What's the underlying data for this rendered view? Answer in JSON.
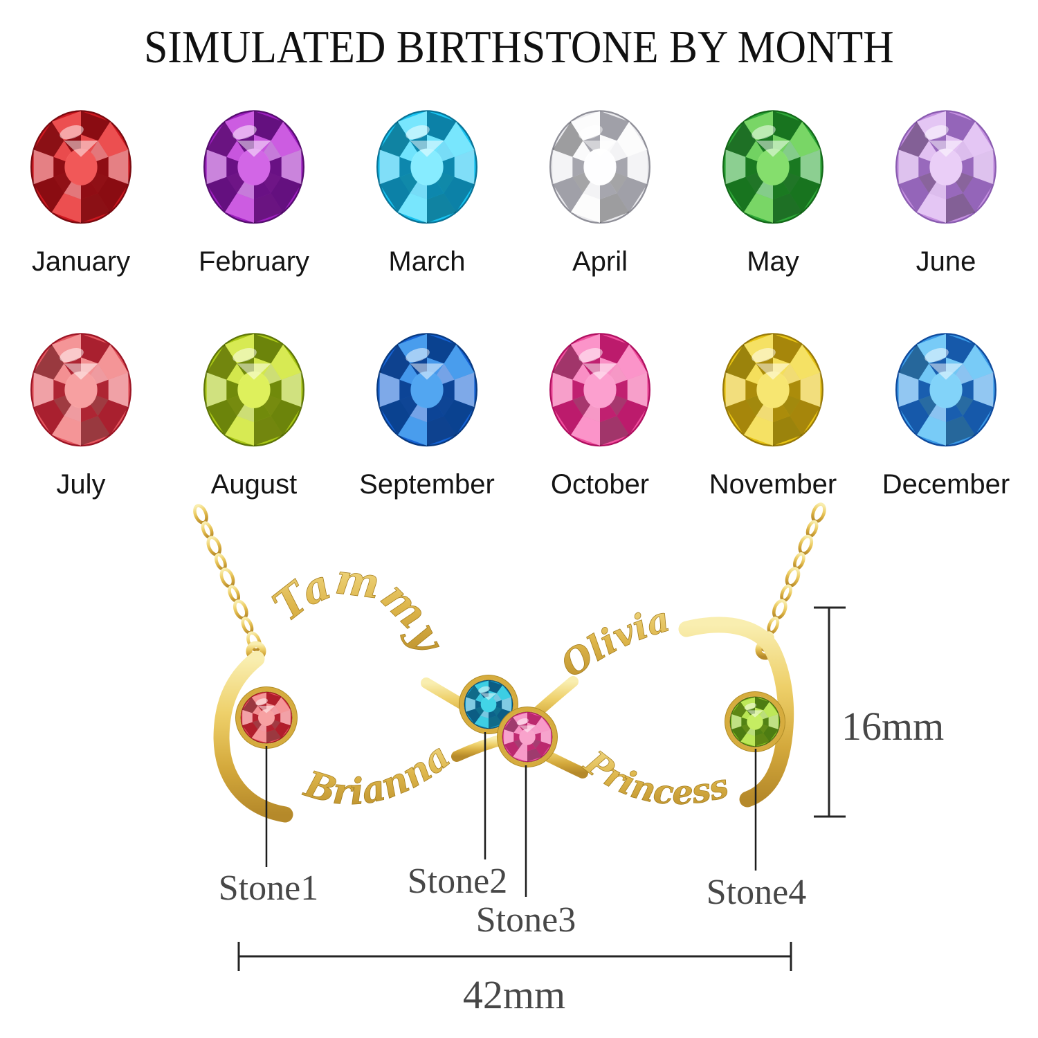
{
  "title": "SIMULATED BIRTHSTONE BY MONTH",
  "birthstones": [
    {
      "month": "January",
      "base": "#cf1820",
      "dark": "#7a0a10",
      "light": "#f25c5c"
    },
    {
      "month": "February",
      "base": "#9e1fc0",
      "dark": "#570e70",
      "light": "#d56ae8"
    },
    {
      "month": "March",
      "base": "#18c4f2",
      "dark": "#0a7396",
      "light": "#8deeff"
    },
    {
      "month": "April",
      "base": "#ebebee",
      "dark": "#8f8f98",
      "light": "#ffffff"
    },
    {
      "month": "May",
      "base": "#2ea838",
      "dark": "#14691a",
      "light": "#8ae070"
    },
    {
      "month": "June",
      "base": "#c490e0",
      "dark": "#8a5cb0",
      "light": "#ecd2f8"
    },
    {
      "month": "July",
      "base": "#e4555e",
      "dark": "#9c1525",
      "light": "#f8a4a4"
    },
    {
      "month": "August",
      "base": "#aac816",
      "dark": "#5e7508",
      "light": "#e0f260"
    },
    {
      "month": "September",
      "base": "#1563d6",
      "dark": "#093a80",
      "light": "#55aaf2"
    },
    {
      "month": "October",
      "base": "#f0509e",
      "dark": "#b01060",
      "light": "#fca4d2"
    },
    {
      "month": "November",
      "base": "#e8c413",
      "dark": "#97790a",
      "light": "#f8e876"
    },
    {
      "month": "December",
      "base": "#3a9ae8",
      "dark": "#0f4a9c",
      "light": "#86d6fa"
    }
  ],
  "necklace": {
    "names": [
      "Tammy",
      "Olivia",
      "Brianna",
      "Princess"
    ],
    "gold": {
      "base": "#e7c95f",
      "light": "#f9eeb0",
      "dark": "#b5892a"
    },
    "stones": [
      {
        "label": "Stone1",
        "base": "#e8545f",
        "dark": "#a31220",
        "light": "#f8a5a5"
      },
      {
        "label": "Stone2",
        "base": "#18a0cc",
        "dark": "#0a4e74",
        "light": "#45d8e8"
      },
      {
        "label": "Stone3",
        "base": "#ee58a4",
        "dark": "#b01e62",
        "light": "#f9a8cf"
      },
      {
        "label": "Stone4",
        "base": "#8cc820",
        "dark": "#3f6b10",
        "light": "#c8ef66"
      }
    ],
    "dimensions": {
      "height": "16mm",
      "width": "42mm"
    }
  }
}
